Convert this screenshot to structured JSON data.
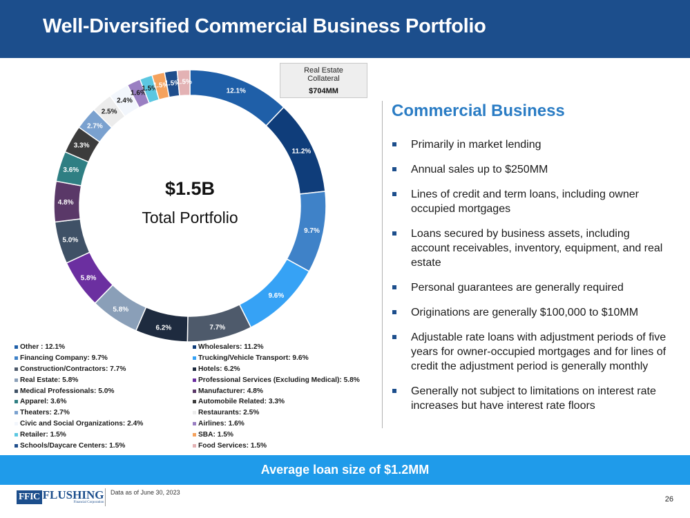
{
  "title": "Well-Diversified Commercial Business Portfolio",
  "center": {
    "amount": "$1.5B",
    "label": "Total Portfolio"
  },
  "collateral_box": {
    "title": "Real Estate Collateral",
    "value": "$704MM"
  },
  "chart_data": {
    "type": "pie",
    "variant": "donut",
    "categories": [
      "Other",
      "Wholesalers",
      "Financing Company",
      "Trucking/Vehicle Transport",
      "Construction/Contractors",
      "Hotels",
      "Real Estate",
      "Professional Services (Excluding Medical)",
      "Medical Professionals",
      "Manufacturer",
      "Apparel",
      "Automobile Related",
      "Theaters",
      "Restaurants",
      "Civic and Social Organizations",
      "Airlines",
      "Retailer",
      "SBA",
      "Schools/Daycare Centers",
      "Food Services"
    ],
    "values": [
      12.1,
      11.2,
      9.7,
      9.6,
      7.7,
      6.2,
      5.8,
      5.8,
      5.0,
      4.8,
      3.6,
      3.3,
      2.7,
      2.5,
      2.4,
      1.6,
      1.5,
      1.5,
      1.5,
      1.5
    ],
    "data_labels": [
      "12.1%",
      "11.2%",
      "9.7%",
      "9.6%",
      "7.7%",
      "6.2%",
      "5.8%",
      "5.8%",
      "5.0%",
      "4.8%",
      "3.6%",
      "3.3%",
      "2.7%",
      "2.5%",
      "2.4%",
      "1.6%",
      "1.5%",
      "1.5%",
      "1.5%",
      "1.5%"
    ],
    "colors": [
      "#1f5fa8",
      "#0f3d7a",
      "#3f82c8",
      "#36a2f5",
      "#4e5a6b",
      "#1e2b3f",
      "#8a9fb8",
      "#6b2fa0",
      "#3f5166",
      "#5a3868",
      "#2f7f83",
      "#3c3c3c",
      "#7aa1cf",
      "#ececec",
      "#f2f6fc",
      "#9a7fc2",
      "#5cc7e1",
      "#f5a25d",
      "#1f4e8c",
      "#e3b2b4"
    ],
    "label_colors": [
      "#ffffff",
      "#ffffff",
      "#ffffff",
      "#ffffff",
      "#ffffff",
      "#ffffff",
      "#ffffff",
      "#ffffff",
      "#ffffff",
      "#ffffff",
      "#ffffff",
      "#ffffff",
      "#ffffff",
      "#1a1a1a",
      "#1a1a1a",
      "#1a1a1a",
      "#1a1a1a",
      "#ffffff",
      "#ffffff",
      "#ffffff"
    ],
    "legend_labels": [
      "Other : 12.1%",
      "Wholesalers: 11.2%",
      "Financing Company: 9.7%",
      "Trucking/Vehicle Transport: 9.6%",
      "Construction/Contractors: 7.7%",
      "Hotels: 6.2%",
      "Real Estate: 5.8%",
      "Professional Services (Excluding Medical): 5.8%",
      "Medical Professionals: 5.0%",
      "Manufacturer: 4.8%",
      "Apparel: 3.6%",
      "Automobile Related: 3.3%",
      "Theaters: 2.7%",
      "Restaurants: 2.5%",
      "Civic and Social Organizations: 2.4%",
      "Airlines: 1.6%",
      "Retailer: 1.5%",
      "SBA: 1.5%",
      "Schools/Daycare Centers: 1.5%",
      "Food Services: 1.5%"
    ]
  },
  "section_title": "Commercial Business",
  "bullets": [
    "Primarily in market lending",
    "Annual sales up to $250MM",
    "Lines of credit and term loans, including owner occupied mortgages",
    "Loans secured by business assets, including account receivables, inventory, equipment, and real estate",
    "Personal guarantees are generally required",
    "Originations are generally $100,000 to $10MM",
    "Adjustable rate loans with adjustment periods of five years for owner-occupied mortgages and for lines of credit the adjustment period is generally monthly",
    "Generally not subject to limitations on interest rate increases but have interest rate floors"
  ],
  "banner": "Average loan size of $1.2MM",
  "logo": {
    "mark": "FFIC",
    "name": "FLUSHING",
    "sub": "Financial Corporation"
  },
  "footnote": "Data as of June 30, 2023",
  "page_number": "26"
}
